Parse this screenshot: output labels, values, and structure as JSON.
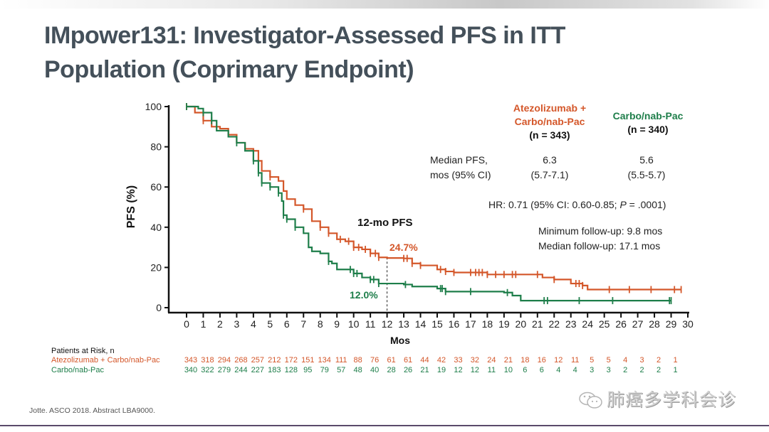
{
  "slide": {
    "title_line1": "IMpower131: Investigator-Assessed PFS in ITT",
    "title_line2": "Population (Coprimary Endpoint)",
    "footer": "Jotte. ASCO 2018. Abstract LBA9000.",
    "watermark": "肺癌多学科会诊",
    "watermark_icon": "wechat-icon"
  },
  "colors": {
    "atezo": "#d4572a",
    "carbo": "#1e7e4a",
    "title": "#44505a",
    "axis": "#111111"
  },
  "arms": {
    "atezo": {
      "name_line1": "Atezolizumab +",
      "name_line2": "Carbo/nab-Pac",
      "n": "(n = 343)",
      "median": "6.3",
      "ci": "(5.7-7.1)",
      "pfs12": "24.7%"
    },
    "carbo": {
      "name_line1": "Carbo/nab-Pac",
      "n": "(n = 340)",
      "median": "5.6",
      "ci": "(5.5-5.7)",
      "pfs12": "12.0%"
    }
  },
  "stats": {
    "median_label_line1": "Median PFS,",
    "median_label_line2": "mos (95% CI)",
    "hr_prefix": "HR: 0.71 (95% CI: 0.60-0.85; ",
    "hr_p": "P",
    "hr_suffix": " = .0001)",
    "min_followup": "Minimum follow-up: 9.8 mos",
    "median_followup": "Median follow-up: 17.1 mos",
    "pfs12_label": "12-mo PFS"
  },
  "risk_table": {
    "header": "Patients at Risk, n",
    "atezo_label": "Atezolizumab + Carbo/nab-Pac",
    "carbo_label": "Carbo/nab-Pac",
    "atezo": [
      343,
      318,
      294,
      268,
      257,
      212,
      172,
      151,
      134,
      111,
      88,
      76,
      61,
      61,
      44,
      42,
      33,
      32,
      24,
      21,
      18,
      16,
      12,
      11,
      5,
      5,
      4,
      3,
      2,
      1
    ],
    "carbo": [
      340,
      322,
      279,
      244,
      227,
      183,
      128,
      95,
      79,
      57,
      48,
      40,
      28,
      26,
      21,
      19,
      12,
      12,
      11,
      10,
      6,
      6,
      4,
      4,
      3,
      3,
      2,
      2,
      2,
      1
    ]
  },
  "chart_data": {
    "type": "line",
    "subtype": "kaplan-meier",
    "xlabel": "Mos",
    "ylabel": "PFS (%)",
    "xlim": [
      0,
      30
    ],
    "ylim": [
      0,
      100
    ],
    "xticks": [
      0,
      1,
      2,
      3,
      4,
      5,
      6,
      7,
      8,
      9,
      10,
      11,
      12,
      13,
      14,
      15,
      16,
      17,
      18,
      19,
      20,
      21,
      22,
      23,
      24,
      25,
      26,
      27,
      28,
      29,
      30
    ],
    "yticks": [
      0,
      20,
      40,
      60,
      80,
      100
    ],
    "grid": false,
    "reference_line_x": 12,
    "series": [
      {
        "name": "Atezolizumab + Carbo/nab-Pac",
        "x": [
          0,
          0.5,
          1,
          1.5,
          2,
          2.5,
          3,
          3.5,
          4,
          4.3,
          4.5,
          5,
          5.5,
          5.8,
          6,
          6.5,
          7,
          7.5,
          8,
          8.5,
          9,
          9.5,
          10,
          10.5,
          11,
          11.5,
          12,
          13,
          13.5,
          14,
          15,
          15.5,
          16,
          18,
          21,
          21.3,
          22,
          23,
          23.7,
          24,
          29.6
        ],
        "y": [
          100,
          97,
          93,
          90,
          89,
          86,
          82,
          79,
          78,
          73,
          68,
          65,
          63,
          58,
          54,
          51,
          49,
          43,
          40,
          37,
          34,
          33,
          30,
          29,
          27,
          25,
          24.7,
          24.5,
          22,
          21,
          19,
          18,
          17.5,
          16.5,
          16.5,
          15,
          14,
          12,
          11,
          9,
          9
        ],
        "censor_x": [
          0,
          1,
          4.3,
          5,
          7,
          8,
          8.5,
          9.2,
          9.7,
          10,
          10.3,
          10.7,
          11,
          11.3,
          11.5,
          13,
          13.2,
          13.5,
          14,
          15.2,
          15.5,
          16,
          17,
          17.3,
          17.5,
          17.7,
          18,
          18.5,
          19,
          19.5,
          19.7,
          21,
          22,
          23.3,
          23.5,
          23.7,
          25.3,
          26.5,
          27.8,
          29.2,
          29.6
        ],
        "final_y": 9
      },
      {
        "name": "Carbo/nab-Pac",
        "x": [
          0,
          0.7,
          1,
          1.5,
          1.8,
          2.5,
          3,
          3.5,
          4,
          4.3,
          4.5,
          5,
          5.5,
          5.7,
          5.8,
          6,
          6.5,
          7,
          7.3,
          7.5,
          8,
          8.5,
          8.7,
          9,
          10,
          10.5,
          11,
          11.5,
          12,
          13,
          13.5,
          15,
          15.5,
          19,
          19.5,
          20,
          29
        ],
        "y": [
          100,
          99,
          97,
          93,
          88,
          85,
          82,
          78,
          73,
          67,
          62,
          60,
          57,
          53,
          46,
          44,
          40,
          37,
          30,
          28,
          27,
          23,
          22,
          19,
          17,
          15,
          14,
          12,
          12,
          11.5,
          10.5,
          9.5,
          8,
          7.5,
          6,
          3.5,
          3.5
        ],
        "censor_x": [
          0,
          1,
          1.5,
          3,
          4,
          4.3,
          4.5,
          5,
          5.5,
          5.8,
          6,
          6.5,
          8.5,
          9.8,
          10,
          10.2,
          11,
          11.2,
          11.5,
          13.1,
          15.2,
          15.3,
          15.5,
          17,
          19.2,
          21.4,
          21.6,
          23.5,
          25.5,
          28.9,
          29
        ],
        "final_y": 3.5
      }
    ],
    "annotations": [
      "12-mo PFS",
      "24.7%",
      "12.0%"
    ]
  }
}
